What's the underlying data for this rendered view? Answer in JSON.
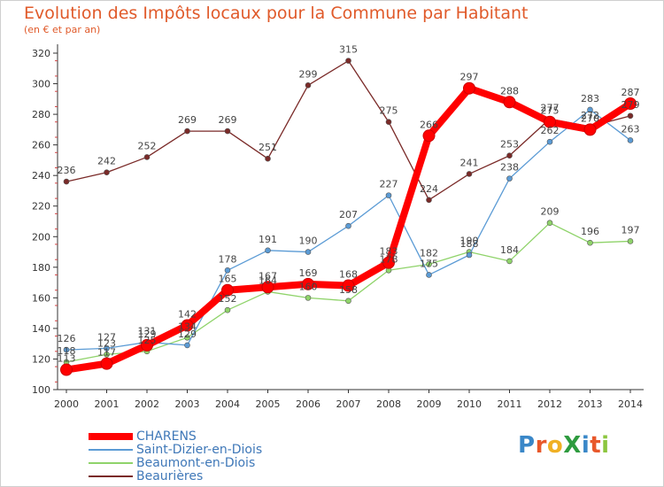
{
  "header": {
    "title": "Evolution des Impôts locaux pour la Commune par Habitant",
    "subtitle": "(en € et par an)"
  },
  "logo": {
    "text": "ProXiti",
    "letters": [
      {
        "ch": "P",
        "color": "#3a87c8"
      },
      {
        "ch": "r",
        "color": "#e8582b"
      },
      {
        "ch": "o",
        "color": "#f0b024"
      },
      {
        "ch": "X",
        "color": "#2e9b3f"
      },
      {
        "ch": "i",
        "color": "#3a87c8"
      },
      {
        "ch": "t",
        "color": "#e8582b"
      },
      {
        "ch": "i",
        "color": "#8cc63f"
      }
    ]
  },
  "chart_data": {
    "type": "line",
    "x": [
      "2000",
      "2001",
      "2002",
      "2003",
      "2004",
      "2005",
      "2006",
      "2007",
      "2008",
      "2009",
      "2010",
      "2011",
      "2012",
      "2013",
      "2014"
    ],
    "ylim": [
      100,
      320
    ],
    "yticks": [
      100,
      120,
      140,
      160,
      180,
      200,
      220,
      240,
      260,
      280,
      300,
      320
    ],
    "grid": false,
    "legend_placement": "bottom-left",
    "series": [
      {
        "name": "Beaurières",
        "color": "#7a2a28",
        "values": [
          236,
          242,
          252,
          269,
          269,
          251,
          299,
          315,
          275,
          224,
          241,
          253,
          277,
          272,
          279
        ]
      },
      {
        "name": "Beaumont-en-Diois",
        "color": "#8fd36a",
        "values": [
          118,
          123,
          125,
          134,
          152,
          164,
          160,
          158,
          178,
          182,
          190,
          184,
          209,
          196,
          197
        ]
      },
      {
        "name": "Saint-Dizier-en-Diois",
        "color": "#5b9bd5",
        "values": [
          126,
          127,
          131,
          129,
          178,
          191,
          190,
          207,
          227,
          175,
          188,
          238,
          262,
          283,
          263
        ]
      },
      {
        "name": "CHARENS",
        "color": "#ff0000",
        "values": [
          113,
          117,
          129,
          142,
          165,
          167,
          169,
          168,
          183,
          266,
          297,
          288,
          275,
          270,
          287
        ]
      }
    ],
    "legend": [
      "CHARENS",
      "Saint-Dizier-en-Diois",
      "Beaumont-en-Diois",
      "Beaurières"
    ]
  }
}
